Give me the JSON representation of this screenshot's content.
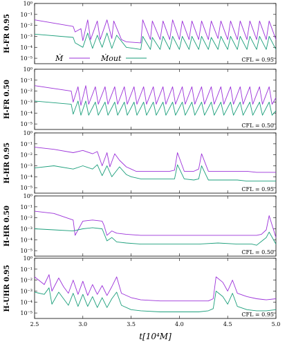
{
  "chart_data": {
    "type": "line",
    "xlabel": "t[10⁴M]",
    "xlim": [
      2.5,
      5.0
    ],
    "x_ticks": [
      "2.5",
      "3.0",
      "3.5",
      "4.0",
      "4.5",
      "5.0"
    ],
    "ylim_log10": [
      -5.5,
      0
    ],
    "y_ticks": [
      "10⁰",
      "10⁻¹",
      "10⁻²",
      "10⁻³",
      "10⁻⁴",
      "10⁻⁵"
    ],
    "legend": {
      "placement": "lower-left",
      "entries": [
        "Ṁ",
        "Ṁout"
      ]
    },
    "colors": {
      "mdot": "#9b30d9",
      "mdot_out": "#1a9e7a"
    },
    "panels": [
      {
        "label": "H-FR 0.95",
        "cfl": "CFL = 0.95",
        "series": [
          {
            "name": "Ṁ",
            "x": [
              2.5,
              2.9,
              2.92,
              2.98,
              3.0,
              3.05,
              3.08,
              3.15,
              3.18,
              3.25,
              3.3,
              3.32,
              3.4,
              3.45,
              3.6,
              3.62,
              3.7,
              3.72,
              3.8,
              3.83,
              3.9,
              3.93,
              4.0,
              4.03,
              4.1,
              4.13,
              4.2,
              4.23,
              4.3,
              4.33,
              4.4,
              4.43,
              4.5,
              4.53,
              4.6,
              4.63,
              4.7,
              4.73,
              4.8,
              4.83,
              4.9,
              4.93,
              5.0
            ],
            "y_log10": [
              -1.5,
              -2.1,
              -2.6,
              -2.3,
              -3.4,
              -1.5,
              -3.3,
              -1.6,
              -3.3,
              -1.5,
              -3.2,
              -1.6,
              -3.3,
              -3.5,
              -3.6,
              -1.5,
              -3.3,
              -1.6,
              -3.3,
              -1.6,
              -3.3,
              -1.5,
              -3.3,
              -1.6,
              -3.3,
              -1.6,
              -3.3,
              -1.6,
              -3.3,
              -1.6,
              -3.2,
              -1.6,
              -3.3,
              -1.6,
              -3.3,
              -1.6,
              -3.3,
              -1.6,
              -3.3,
              -1.6,
              -3.3,
              -1.6,
              -3.3
            ]
          },
          {
            "name": "Ṁout",
            "x": [
              2.5,
              2.9,
              2.92,
              3.0,
              3.05,
              3.1,
              3.15,
              3.2,
              3.25,
              3.3,
              3.35,
              3.45,
              3.6,
              3.62,
              3.7,
              3.72,
              3.8,
              3.83,
              3.9,
              3.93,
              4.0,
              4.03,
              4.1,
              4.13,
              4.2,
              4.23,
              4.3,
              4.33,
              4.4,
              4.43,
              4.5,
              4.53,
              4.6,
              4.63,
              4.7,
              4.73,
              4.8,
              4.83,
              4.9,
              4.93,
              5.0
            ],
            "y_log10": [
              -2.8,
              -3.1,
              -3.6,
              -4.0,
              -2.7,
              -4.1,
              -2.9,
              -4.0,
              -2.7,
              -4.1,
              -2.9,
              -4.0,
              -4.2,
              -3.0,
              -4.2,
              -3.1,
              -4.2,
              -3.0,
              -4.2,
              -3.0,
              -4.2,
              -3.0,
              -4.2,
              -3.0,
              -4.2,
              -3.0,
              -4.2,
              -3.1,
              -4.2,
              -3.0,
              -4.2,
              -3.0,
              -4.2,
              -3.0,
              -4.2,
              -3.0,
              -4.2,
              -3.0,
              -4.2,
              -3.0,
              -4.2
            ]
          }
        ]
      },
      {
        "label": "H-FR 0.50",
        "cfl": "CFL = 0.50",
        "series": [
          {
            "name": "Ṁ",
            "x": [
              2.5,
              2.88,
              2.9,
              2.95,
              2.98,
              3.03,
              3.06,
              3.13,
              3.16,
              3.23,
              3.26,
              3.33,
              3.36,
              3.43,
              3.46,
              3.53,
              3.56,
              3.63,
              3.66,
              3.73,
              3.76,
              3.83,
              3.86,
              3.93,
              3.96,
              4.03,
              4.06,
              4.13,
              4.16,
              4.23,
              4.26,
              4.33,
              4.36,
              4.43,
              4.46,
              4.53,
              4.56,
              4.63,
              4.66,
              4.73,
              4.76,
              4.83,
              4.86,
              4.93,
              4.96,
              5.0
            ],
            "y_log10": [
              -1.5,
              -2.0,
              -3.0,
              -1.6,
              -3.3,
              -1.5,
              -3.2,
              -1.6,
              -3.2,
              -1.6,
              -3.2,
              -1.6,
              -3.2,
              -1.6,
              -3.2,
              -1.6,
              -3.2,
              -1.6,
              -3.2,
              -1.6,
              -3.2,
              -1.6,
              -3.2,
              -1.6,
              -3.2,
              -1.6,
              -3.2,
              -1.6,
              -3.2,
              -1.6,
              -3.2,
              -1.6,
              -3.2,
              -1.6,
              -3.2,
              -1.6,
              -3.2,
              -1.6,
              -3.2,
              -1.6,
              -3.2,
              -1.6,
              -3.2,
              -1.6,
              -3.2,
              -2.6
            ]
          },
          {
            "name": "Ṁout",
            "x": [
              2.5,
              2.88,
              2.9,
              2.95,
              2.98,
              3.03,
              3.06,
              3.13,
              3.16,
              3.23,
              3.26,
              3.33,
              3.36,
              3.43,
              3.46,
              3.53,
              3.56,
              3.63,
              3.66,
              3.73,
              3.76,
              3.83,
              3.86,
              3.93,
              3.96,
              4.03,
              4.06,
              4.13,
              4.16,
              4.23,
              4.26,
              4.33,
              4.36,
              4.43,
              4.46,
              4.53,
              4.56,
              4.63,
              4.66,
              4.73,
              4.76,
              4.83,
              4.86,
              4.93,
              4.96,
              5.0
            ],
            "y_log10": [
              -2.9,
              -3.2,
              -4.1,
              -2.9,
              -4.2,
              -2.9,
              -4.2,
              -3.0,
              -4.2,
              -3.0,
              -4.2,
              -3.0,
              -4.2,
              -3.0,
              -4.2,
              -3.0,
              -4.2,
              -3.0,
              -4.2,
              -3.0,
              -4.2,
              -3.0,
              -4.2,
              -3.0,
              -4.2,
              -3.0,
              -4.2,
              -3.0,
              -4.2,
              -3.0,
              -4.2,
              -3.0,
              -4.2,
              -3.0,
              -4.2,
              -3.0,
              -4.2,
              -3.0,
              -4.2,
              -3.0,
              -4.2,
              -3.0,
              -4.2,
              -3.0,
              -4.2,
              -3.8
            ]
          }
        ]
      },
      {
        "label": "H-HR 0.95",
        "cfl": "CFL = 0.95",
        "series": [
          {
            "name": "Ṁ",
            "x": [
              2.5,
              2.7,
              2.9,
              3.0,
              3.1,
              3.15,
              3.2,
              3.25,
              3.28,
              3.33,
              3.38,
              3.45,
              3.5,
              3.55,
              3.6,
              3.7,
              3.8,
              3.9,
              3.95,
              3.98,
              4.05,
              4.15,
              4.2,
              4.23,
              4.3,
              4.4,
              4.5,
              4.6,
              4.7,
              4.8,
              4.9,
              5.0
            ],
            "y_log10": [
              -1.3,
              -1.5,
              -1.8,
              -1.6,
              -1.9,
              -1.7,
              -3.0,
              -1.8,
              -3.1,
              -1.9,
              -2.5,
              -3.1,
              -3.3,
              -3.5,
              -3.5,
              -3.5,
              -3.5,
              -3.5,
              -3.4,
              -1.8,
              -3.5,
              -3.5,
              -3.3,
              -1.9,
              -3.5,
              -3.5,
              -3.5,
              -3.5,
              -3.5,
              -3.6,
              -3.6,
              -3.6
            ]
          },
          {
            "name": "Ṁout",
            "x": [
              2.5,
              2.7,
              2.9,
              3.0,
              3.1,
              3.15,
              3.2,
              3.25,
              3.3,
              3.38,
              3.45,
              3.5,
              3.6,
              3.7,
              3.8,
              3.9,
              3.95,
              3.98,
              4.05,
              4.15,
              4.2,
              4.23,
              4.3,
              4.4,
              4.5,
              4.6,
              4.7,
              4.8,
              4.9,
              5.0
            ],
            "y_log10": [
              -3.2,
              -3.0,
              -3.3,
              -3.0,
              -3.3,
              -2.9,
              -3.9,
              -3.0,
              -4.0,
              -3.1,
              -3.8,
              -4.0,
              -4.2,
              -4.2,
              -4.2,
              -4.2,
              -4.2,
              -2.9,
              -4.2,
              -4.3,
              -4.2,
              -3.0,
              -4.3,
              -4.3,
              -4.3,
              -4.3,
              -4.4,
              -4.4,
              -4.4,
              -4.4
            ]
          }
        ]
      },
      {
        "label": "H-HR 0.50",
        "cfl": "CFL = 0.50",
        "series": [
          {
            "name": "Ṁ",
            "x": [
              2.5,
              2.7,
              2.9,
              2.92,
              3.0,
              3.1,
              3.2,
              3.22,
              3.25,
              3.3,
              3.35,
              3.45,
              3.6,
              3.8,
              4.0,
              4.2,
              4.4,
              4.6,
              4.8,
              4.85,
              4.9,
              4.93,
              5.0
            ],
            "y_log10": [
              -1.4,
              -1.6,
              -2.2,
              -3.6,
              -2.3,
              -2.2,
              -2.3,
              -2.7,
              -3.6,
              -3.2,
              -3.4,
              -3.5,
              -3.6,
              -3.6,
              -3.6,
              -3.6,
              -3.6,
              -3.6,
              -3.6,
              -3.5,
              -3.1,
              -1.8,
              -3.8
            ]
          },
          {
            "name": "Ṁout",
            "x": [
              2.5,
              2.7,
              2.9,
              3.0,
              3.1,
              3.2,
              3.25,
              3.3,
              3.35,
              3.45,
              3.6,
              3.8,
              4.0,
              4.2,
              4.4,
              4.6,
              4.75,
              4.8,
              4.9,
              4.93,
              5.0
            ],
            "y_log10": [
              -3.0,
              -3.1,
              -3.2,
              -3.0,
              -2.9,
              -3.0,
              -4.1,
              -3.8,
              -4.2,
              -4.3,
              -4.4,
              -4.4,
              -4.4,
              -4.4,
              -4.3,
              -4.4,
              -4.4,
              -4.5,
              -3.8,
              -3.3,
              -4.4
            ]
          }
        ]
      },
      {
        "label": "H-UHR 0.95",
        "cfl": "CFL = 0.95",
        "series": [
          {
            "name": "Ṁ",
            "x": [
              2.5,
              2.6,
              2.65,
              2.68,
              2.75,
              2.8,
              2.85,
              2.9,
              2.95,
              3.0,
              3.05,
              3.1,
              3.15,
              3.2,
              3.25,
              3.3,
              3.35,
              3.4,
              3.5,
              3.6,
              3.8,
              4.0,
              4.2,
              4.3,
              4.35,
              4.38,
              4.45,
              4.5,
              4.55,
              4.6,
              4.7,
              4.8,
              4.9,
              5.0
            ],
            "y_log10": [
              -1.7,
              -2.4,
              -1.5,
              -3.0,
              -1.8,
              -2.6,
              -3.2,
              -2.0,
              -3.3,
              -2.1,
              -3.4,
              -2.4,
              -3.3,
              -2.5,
              -3.4,
              -2.6,
              -1.7,
              -3.2,
              -3.6,
              -3.8,
              -3.9,
              -3.9,
              -3.9,
              -3.9,
              -3.7,
              -1.7,
              -2.2,
              -3.0,
              -2.0,
              -3.2,
              -3.5,
              -3.7,
              -3.8,
              -3.7
            ]
          },
          {
            "name": "Ṁout",
            "x": [
              2.5,
              2.6,
              2.65,
              2.68,
              2.75,
              2.8,
              2.85,
              2.9,
              2.95,
              3.0,
              3.05,
              3.1,
              3.15,
              3.2,
              3.25,
              3.3,
              3.35,
              3.4,
              3.5,
              3.6,
              3.8,
              4.0,
              4.2,
              4.3,
              4.35,
              4.38,
              4.45,
              4.5,
              4.55,
              4.6,
              4.7,
              4.8,
              4.9,
              5.0
            ],
            "y_log10": [
              -3.1,
              -3.3,
              -2.7,
              -4.2,
              -3.1,
              -3.7,
              -4.3,
              -3.2,
              -4.4,
              -3.3,
              -4.4,
              -3.5,
              -4.5,
              -3.6,
              -4.5,
              -3.7,
              -3.1,
              -4.3,
              -4.7,
              -4.8,
              -4.9,
              -4.9,
              -4.9,
              -4.8,
              -4.6,
              -3.0,
              -3.5,
              -4.2,
              -3.2,
              -4.4,
              -4.7,
              -4.8,
              -4.8,
              -4.7
            ]
          }
        ]
      }
    ]
  }
}
